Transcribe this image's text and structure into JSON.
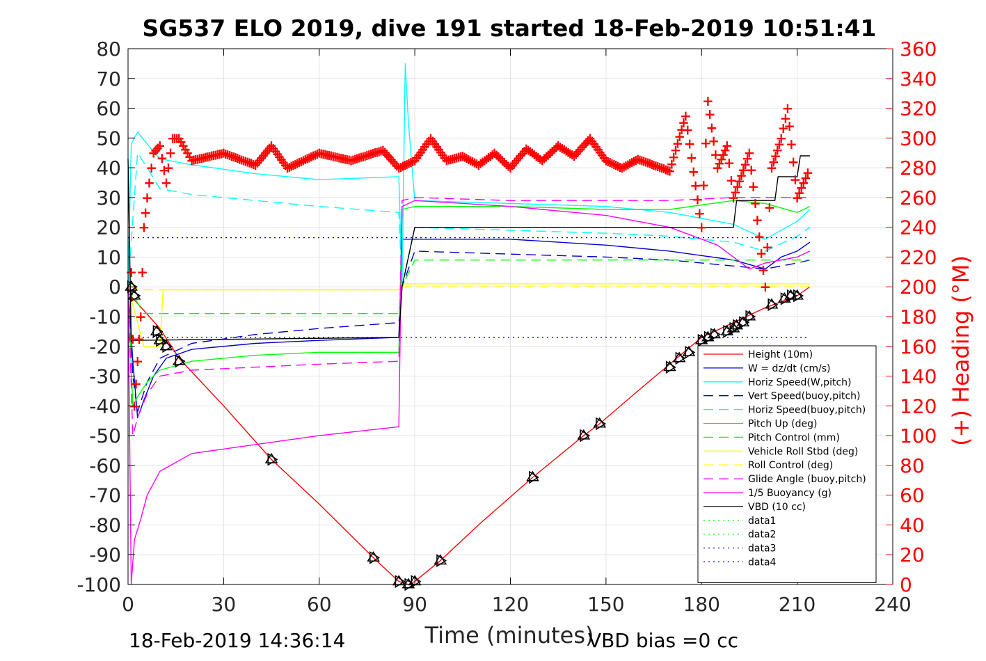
{
  "title": "SG537 ELO 2019, dive 191 started 18-Feb-2019 10:51:41",
  "footer": {
    "timestamp": "18-Feb-2019 14:36:14",
    "vbd_bias": "VBD bias =0 cc"
  },
  "colors": {
    "heading_axis": "#ff0000",
    "height": "#ff0000",
    "w": "#0000cc",
    "horiz_w": "#00ffff",
    "vert_buoy": "#0000cc",
    "horiz_buoy": "#00ffff",
    "pitch_up": "#00ff00",
    "pitch_ctl": "#00ff00",
    "roll": "#ffff00",
    "roll_ctl": "#ffff00",
    "glide": "#ff00ff",
    "buoyancy": "#ff00ff",
    "vbd": "#000000",
    "data1": "#00ff00",
    "data2": "#00ff00",
    "data3": "#0000aa",
    "data4": "#0000aa"
  },
  "chart_data": {
    "type": "line",
    "title": "SG537 ELO 2019, dive 191 started 18-Feb-2019 10:51:41",
    "xlabel": "Time (minutes)",
    "ylabel": "",
    "y2label": "(+) Heading (°M)",
    "xlim": [
      0,
      240
    ],
    "ylim": [
      -100,
      80
    ],
    "y2lim": [
      0,
      360
    ],
    "xticks": [
      0,
      30,
      60,
      90,
      120,
      150,
      180,
      210,
      240
    ],
    "yticks": [
      -100,
      -90,
      -80,
      -70,
      -60,
      -50,
      -40,
      -30,
      -20,
      -10,
      0,
      10,
      20,
      30,
      40,
      50,
      60,
      70,
      80
    ],
    "y2ticks": [
      0,
      20,
      40,
      60,
      80,
      100,
      120,
      140,
      160,
      180,
      200,
      220,
      240,
      260,
      280,
      300,
      320,
      340,
      360
    ],
    "grid": true,
    "legend_position": "lower-right",
    "series": [
      {
        "name": "Height (10m)",
        "key": "height",
        "style": "solid",
        "x": [
          0,
          5,
          10,
          16,
          30,
          45,
          60,
          77,
          85,
          88,
          90,
          98,
          110,
          127,
          143,
          148,
          160,
          170,
          180,
          190,
          200,
          210,
          214
        ],
        "y": [
          -2,
          -8,
          -14,
          -24,
          -40,
          -58,
          -73,
          -91,
          -99,
          -100,
          -99,
          -92,
          -80,
          -64,
          -50,
          -46,
          -35,
          -26,
          -17,
          -12,
          -7,
          -3,
          0
        ]
      },
      {
        "name": "W = dz/dt (cm/s)",
        "key": "w",
        "style": "solid",
        "x": [
          0,
          1.5,
          3,
          5,
          8,
          12,
          20,
          40,
          60,
          85,
          86,
          90,
          120,
          150,
          170,
          190,
          200,
          205,
          210,
          214
        ],
        "y": [
          0,
          -25,
          -44,
          -38,
          -30,
          -24,
          -21,
          -19,
          -18,
          -17,
          16,
          16,
          16,
          14,
          12,
          9,
          6,
          10,
          12,
          15
        ]
      },
      {
        "name": "Horiz Speed(W,pitch)",
        "key": "horiz_w",
        "style": "solid",
        "x": [
          0,
          1,
          3,
          6,
          10,
          20,
          40,
          60,
          85,
          86,
          87,
          88,
          90,
          120,
          150,
          170,
          190,
          200,
          210,
          214
        ],
        "y": [
          0,
          48,
          52,
          48,
          43,
          41,
          38,
          36,
          37,
          0,
          75,
          55,
          29,
          28,
          27,
          25,
          21,
          16,
          22,
          26
        ]
      },
      {
        "name": "Vert Speed(buoy,pitch)",
        "key": "vert_buoy",
        "style": "dashed",
        "x": [
          0,
          1.5,
          3,
          6,
          10,
          20,
          40,
          60,
          85,
          86,
          90,
          120,
          150,
          170,
          190,
          200,
          210,
          214
        ],
        "y": [
          0,
          -30,
          -42,
          -32,
          -24,
          -19,
          -16,
          -14,
          -12,
          0,
          12,
          11,
          10,
          9,
          7,
          6,
          8,
          9
        ]
      },
      {
        "name": "Horiz Speed(buoy,pitch)",
        "key": "horiz_buoy",
        "style": "dashed",
        "x": [
          0,
          3,
          6,
          10,
          20,
          40,
          60,
          85,
          86,
          90,
          120,
          150,
          170,
          190,
          200,
          210,
          214
        ],
        "y": [
          0,
          45,
          40,
          33,
          31,
          29,
          27,
          25,
          0,
          20,
          19,
          18,
          17,
          15,
          12,
          17,
          20
        ]
      },
      {
        "name": "Pitch Up (deg)",
        "key": "pitch_up",
        "style": "solid",
        "x": [
          0,
          1.5,
          3,
          6,
          10,
          20,
          40,
          60,
          85,
          86,
          90,
          120,
          150,
          170,
          190,
          200,
          210,
          214
        ],
        "y": [
          0,
          -40,
          -37,
          -32,
          -28,
          -25,
          -23,
          -22,
          -22,
          26,
          27,
          27,
          26,
          26,
          29,
          28,
          25,
          27
        ]
      },
      {
        "name": "Pitch Control (mm)",
        "key": "pitch_ctl",
        "style": "dashed",
        "x": [
          0,
          5,
          85,
          86,
          90,
          214
        ],
        "y": [
          0,
          -9,
          -9,
          0,
          9,
          9
        ]
      },
      {
        "name": "Vehicle Roll Stbd (deg)",
        "key": "roll",
        "style": "solid",
        "x": [
          0,
          5,
          10,
          11,
          12,
          85,
          86,
          214
        ],
        "y": [
          0,
          -20,
          -20,
          -1,
          -1,
          -1,
          1,
          1
        ]
      },
      {
        "name": "Roll Control (deg)",
        "key": "roll_ctl",
        "style": "dashed",
        "x": [
          0,
          5,
          85,
          86,
          214
        ],
        "y": [
          0,
          -1,
          -1,
          0,
          0
        ]
      },
      {
        "name": "Glide Angle (buoy,pitch)",
        "key": "glide",
        "style": "dashed",
        "x": [
          0,
          1.5,
          3,
          6,
          10,
          20,
          40,
          60,
          85,
          86,
          90,
          120,
          150,
          170,
          190,
          200,
          210,
          214
        ],
        "y": [
          0,
          -50,
          -44,
          -36,
          -30,
          -28,
          -27,
          -26,
          -25,
          29,
          30,
          29,
          29,
          29,
          30,
          30,
          30,
          30
        ]
      },
      {
        "name": "1/5 Buoyancy (g)",
        "key": "buoyancy",
        "style": "solid",
        "x": [
          0,
          1,
          2,
          4,
          6,
          10,
          20,
          40,
          60,
          85,
          86,
          90,
          120,
          150,
          170,
          185,
          195,
          200,
          210,
          214
        ],
        "y": [
          0,
          -100,
          -85,
          -78,
          -70,
          -62,
          -56,
          -53,
          -50,
          -47,
          27,
          29,
          27,
          24,
          20,
          14,
          6,
          8,
          10,
          12
        ]
      },
      {
        "name": "VBD (10 cc)",
        "key": "vbd",
        "style": "solid",
        "x": [
          0,
          1,
          85,
          86,
          90,
          185,
          190,
          191,
          203,
          204,
          210,
          211,
          214
        ],
        "y": [
          43,
          -18,
          -17,
          0,
          20,
          20,
          20,
          29,
          29,
          37,
          37,
          44,
          44
        ]
      },
      {
        "name": "data1",
        "key": "data1",
        "style": "dotted",
        "x": [],
        "y": []
      },
      {
        "name": "data2",
        "key": "data2",
        "style": "dotted",
        "x": [],
        "y": []
      },
      {
        "name": "data3",
        "key": "data3",
        "style": "dotted",
        "x": [
          0,
          214
        ],
        "y": [
          16.5,
          16.5
        ]
      },
      {
        "name": "data4",
        "key": "data4",
        "style": "dotted",
        "x": [
          0,
          214
        ],
        "y": [
          -17,
          -17
        ]
      }
    ],
    "heading": {
      "axis": "right",
      "x": [
        1,
        2,
        3,
        4,
        5,
        6,
        8,
        10,
        12,
        14,
        16,
        20,
        30,
        40,
        45,
        50,
        60,
        70,
        80,
        85,
        90,
        95,
        100,
        105,
        110,
        115,
        120,
        125,
        130,
        135,
        140,
        145,
        150,
        155,
        160,
        165,
        170,
        175,
        180,
        182,
        185,
        188,
        190,
        195,
        200,
        202,
        205,
        207,
        210,
        212,
        214
      ],
      "y": [
        210,
        120,
        150,
        180,
        240,
        260,
        290,
        295,
        270,
        300,
        300,
        285,
        290,
        282,
        295,
        280,
        290,
        285,
        292,
        280,
        285,
        300,
        285,
        288,
        282,
        290,
        280,
        293,
        285,
        295,
        288,
        300,
        285,
        280,
        286,
        282,
        278,
        315,
        240,
        325,
        280,
        295,
        260,
        290,
        200,
        280,
        300,
        320,
        260,
        270,
        280
      ]
    },
    "markers": {
      "x": [
        1,
        2,
        9,
        10,
        12,
        16,
        45,
        77,
        85,
        88,
        90,
        98,
        127,
        143,
        148,
        170,
        173,
        176,
        180,
        182,
        184,
        188,
        190,
        191,
        193,
        195,
        202,
        206,
        208,
        210
      ],
      "y": [
        0,
        -3,
        -15,
        -18,
        -20,
        -25,
        -58,
        -91,
        -99,
        -100,
        -99,
        -92,
        -64,
        -50,
        -46,
        -27,
        -24,
        -22,
        -18,
        -17,
        -16,
        -15,
        -14,
        -13,
        -12,
        -10,
        -6,
        -4,
        -3,
        -3
      ]
    }
  }
}
